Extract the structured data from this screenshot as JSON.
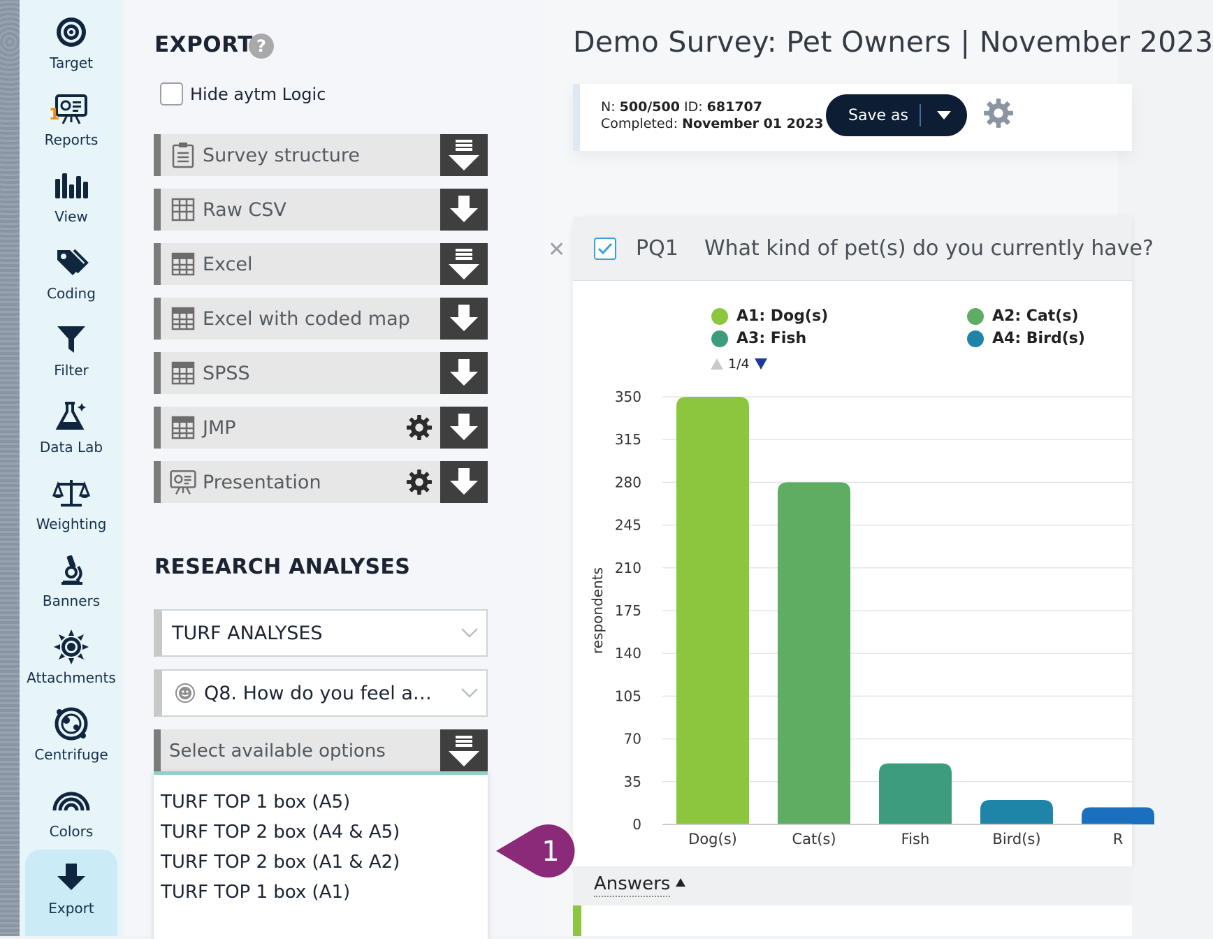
{
  "nav": {
    "items": [
      {
        "label": "Target",
        "icon": "target-icon"
      },
      {
        "label": "Reports",
        "icon": "presentation-icon",
        "badge": "1"
      },
      {
        "label": "View",
        "icon": "bar-chart-icon"
      },
      {
        "label": "Coding",
        "icon": "tags-icon"
      },
      {
        "label": "Filter",
        "icon": "funnel-icon"
      },
      {
        "label": "Data Lab",
        "icon": "flask-icon"
      },
      {
        "label": "Weighting",
        "icon": "scales-icon"
      },
      {
        "label": "Banners",
        "icon": "microscope-icon"
      },
      {
        "label": "Attachments",
        "icon": "sun-icon"
      },
      {
        "label": "Centrifuge",
        "icon": "centrifuge-icon"
      },
      {
        "label": "Colors",
        "icon": "rainbow-icon"
      },
      {
        "label": "Export",
        "icon": "download-arrow-icon",
        "active": true
      }
    ]
  },
  "export": {
    "title": "EXPORT",
    "help": "?",
    "hide_logic_label": "Hide aytm Logic",
    "rows": [
      {
        "label": "Survey structure",
        "icon": "clipboard-icon",
        "has_gear": false,
        "download_icon": "download-list-icon"
      },
      {
        "label": "Raw CSV",
        "icon": "grid-icon",
        "has_gear": false,
        "download_icon": "download-icon"
      },
      {
        "label": "Excel",
        "icon": "grid-icon",
        "has_gear": false,
        "download_icon": "download-list-icon"
      },
      {
        "label": "Excel with coded map",
        "icon": "grid-icon",
        "has_gear": false,
        "download_icon": "download-icon"
      },
      {
        "label": "SPSS",
        "icon": "grid-icon",
        "has_gear": false,
        "download_icon": "download-icon"
      },
      {
        "label": "JMP",
        "icon": "grid-icon",
        "has_gear": true,
        "download_icon": "download-icon"
      },
      {
        "label": "Presentation",
        "icon": "presentation-icon",
        "has_gear": true,
        "download_icon": "download-icon"
      }
    ]
  },
  "research": {
    "title": "RESEARCH ANALYSES",
    "analysis_select": "TURF ANALYSES",
    "question_select": "Q8. How do you feel a…",
    "options_placeholder": "Select available options",
    "options": [
      "TURF TOP 1 box (A5)",
      "TURF TOP 2 box (A4 & A5)",
      "TURF TOP 2 box (A1 & A2)",
      "TURF TOP 1 box (A1)"
    ]
  },
  "callout": {
    "number": "1",
    "color": "#8a2a78"
  },
  "survey": {
    "title": "Demo Survey: Pet Owners | November 2023",
    "n_label": "N:",
    "n_value": "500/500",
    "id_label": "ID:",
    "id_value": "681707",
    "completed_label": "Completed:",
    "completed_value": "November 01 2023",
    "save_as": "Save as"
  },
  "question": {
    "id": "PQ1",
    "text": "What kind of pet(s) do you currently have?",
    "legend": [
      {
        "label": "A1: Dog(s)",
        "color": "#8cc63f"
      },
      {
        "label": "A2: Cat(s)",
        "color": "#5fad62"
      },
      {
        "label": "A3: Fish",
        "color": "#3d9b7e"
      },
      {
        "label": "A4: Bird(s)",
        "color": "#1f85a8"
      }
    ],
    "pager": "1/4",
    "answers_label": "Answers"
  },
  "chart_data": {
    "type": "bar",
    "ylabel": "respondents",
    "ylim": [
      0,
      350
    ],
    "yticks": [
      0,
      35,
      70,
      105,
      140,
      175,
      210,
      245,
      280,
      315,
      350
    ],
    "categories": [
      "Dog(s)",
      "Cat(s)",
      "Fish",
      "Bird(s)",
      "R"
    ],
    "values": [
      350,
      280,
      50,
      20,
      14
    ],
    "colors": [
      "#8cc63f",
      "#5fad62",
      "#3d9b7e",
      "#1f85a8",
      "#1a6fbf"
    ],
    "grid": true
  }
}
